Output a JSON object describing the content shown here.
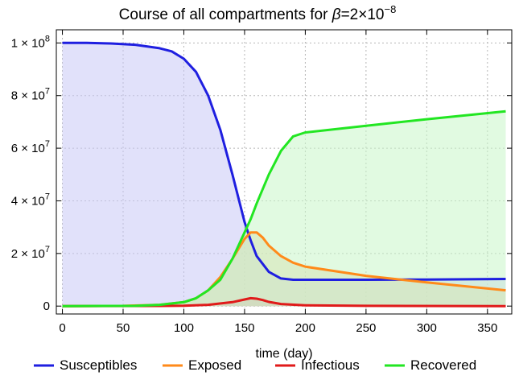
{
  "chart_data": {
    "type": "area",
    "title": "Course of all compartments for β=2×10⁻⁸",
    "title_parts": {
      "prefix": "Course of all compartments for ",
      "beta": "β",
      "mantissa": "=2×10",
      "exponent": "−8"
    },
    "xlabel": "time (day)",
    "ylabel": "",
    "xlim": [
      -5,
      370
    ],
    "ylim": [
      -3000000,
      105000000
    ],
    "grid": true,
    "legend_position": "bottom",
    "x_ticks": [
      0,
      50,
      100,
      150,
      200,
      250,
      300,
      350
    ],
    "x_tick_labels": [
      "0",
      "50",
      "100",
      "150",
      "200",
      "250",
      "300",
      "350"
    ],
    "y_ticks": [
      {
        "value": 0,
        "label": "0",
        "base": "",
        "exp": ""
      },
      {
        "value": 20000000,
        "label": "2 × 10",
        "base": "2 × 10",
        "exp": "7"
      },
      {
        "value": 40000000,
        "label": "4 × 10",
        "base": "4 × 10",
        "exp": "7"
      },
      {
        "value": 60000000,
        "label": "6 × 10",
        "base": "6 × 10",
        "exp": "7"
      },
      {
        "value": 80000000,
        "label": "8 × 10",
        "base": "8 × 10",
        "exp": "7"
      },
      {
        "value": 100000000,
        "label": "1 × 10",
        "base": "1 × 10",
        "exp": "8"
      }
    ],
    "series": [
      {
        "name": "Susceptibles",
        "color": "#1f1fe0",
        "fill": "#c8c8f5",
        "x": [
          0,
          20,
          40,
          60,
          80,
          90,
          100,
          110,
          120,
          130,
          140,
          150,
          155,
          160,
          170,
          180,
          190,
          200,
          250,
          300,
          365
        ],
        "y": [
          100000000,
          100000000,
          99800000,
          99300000,
          98000000,
          96800000,
          94000000,
          89000000,
          80000000,
          67000000,
          50000000,
          32000000,
          25000000,
          19000000,
          13000000,
          10500000,
          10000000,
          10000000,
          10000000,
          10100000,
          10300000
        ]
      },
      {
        "name": "Exposed",
        "color": "#ff8a1a",
        "fill": "#e8d0a0",
        "x": [
          0,
          50,
          80,
          100,
          110,
          120,
          130,
          140,
          150,
          155,
          160,
          165,
          170,
          180,
          190,
          200,
          250,
          300,
          365
        ],
        "y": [
          0,
          100000,
          500000,
          1500000,
          3000000,
          6000000,
          11000000,
          18000000,
          25500000,
          28000000,
          28000000,
          26000000,
          23000000,
          19000000,
          16500000,
          15000000,
          11500000,
          9000000,
          6000000
        ]
      },
      {
        "name": "Infectious",
        "color": "#e01a1a",
        "fill": "#d8a8a8",
        "x": [
          0,
          80,
          100,
          120,
          140,
          150,
          155,
          160,
          165,
          170,
          180,
          200,
          250,
          365
        ],
        "y": [
          0,
          50000,
          150000,
          500000,
          1500000,
          2500000,
          3000000,
          2800000,
          2300000,
          1600000,
          800000,
          300000,
          100000,
          0
        ]
      },
      {
        "name": "Recovered",
        "color": "#22e622",
        "fill": "#c8f5c8",
        "x": [
          0,
          60,
          80,
          100,
          110,
          120,
          130,
          140,
          150,
          155,
          160,
          170,
          180,
          190,
          200,
          250,
          300,
          365
        ],
        "y": [
          0,
          100000,
          500000,
          1500000,
          3000000,
          6000000,
          10000000,
          18000000,
          28000000,
          33000000,
          39000000,
          50000000,
          59000000,
          64500000,
          66000000,
          68500000,
          71000000,
          74000000
        ]
      }
    ]
  }
}
